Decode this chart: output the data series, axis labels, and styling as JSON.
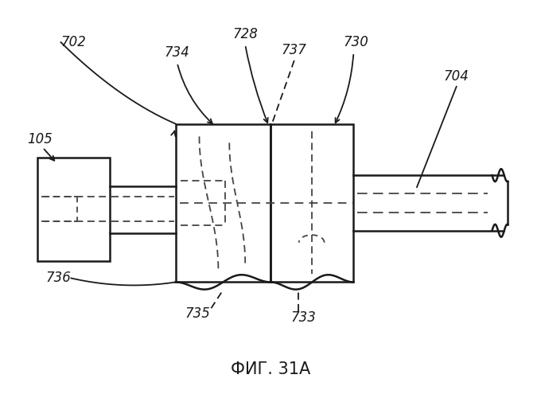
{
  "bg_color": "#ffffff",
  "line_color": "#1a1a1a",
  "dashed_color": "#444444",
  "title": "ФИГ. 31А",
  "title_fontsize": 15,
  "fig_width": 6.8,
  "fig_height": 5.0,
  "dpi": 100
}
